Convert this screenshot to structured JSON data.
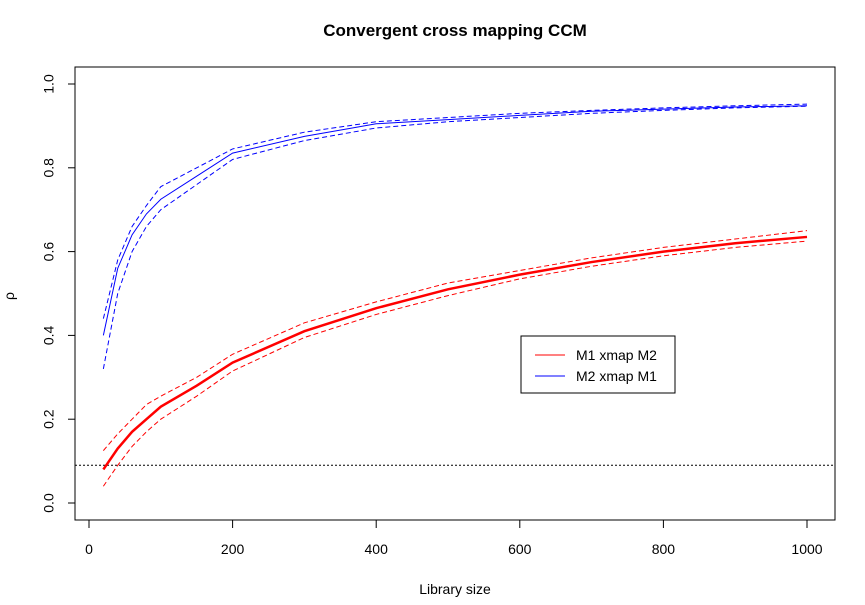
{
  "chart_data": {
    "type": "line",
    "title": "Convergent cross mapping CCM",
    "xlabel": "Library size",
    "ylabel": "ρ",
    "xlim": [
      0,
      1000
    ],
    "ylim": [
      0.0,
      1.0
    ],
    "x_ticks": [
      "0",
      "200",
      "400",
      "600",
      "800",
      "1000"
    ],
    "y_ticks": [
      "0.0",
      "0.2",
      "0.4",
      "0.6",
      "0.8",
      "1.0"
    ],
    "grid": false,
    "legend_position": "center-right",
    "x": [
      20,
      40,
      60,
      80,
      100,
      150,
      200,
      300,
      400,
      500,
      600,
      700,
      800,
      900,
      1000
    ],
    "series": [
      {
        "name": "M1 xmap M2",
        "color": "#ff0000",
        "values": [
          0.08,
          0.13,
          0.17,
          0.2,
          0.23,
          0.28,
          0.335,
          0.41,
          0.465,
          0.51,
          0.545,
          0.575,
          0.6,
          0.62,
          0.635
        ],
        "upper": [
          0.125,
          0.165,
          0.2,
          0.235,
          0.255,
          0.3,
          0.355,
          0.43,
          0.48,
          0.525,
          0.555,
          0.585,
          0.61,
          0.63,
          0.65
        ],
        "lower": [
          0.04,
          0.09,
          0.135,
          0.17,
          0.2,
          0.255,
          0.315,
          0.395,
          0.45,
          0.495,
          0.535,
          0.565,
          0.59,
          0.61,
          0.625
        ]
      },
      {
        "name": "M2 xmap M1",
        "color": "#0000ff",
        "values": [
          0.4,
          0.56,
          0.64,
          0.69,
          0.725,
          0.78,
          0.835,
          0.875,
          0.905,
          0.915,
          0.925,
          0.935,
          0.94,
          0.945,
          0.948
        ],
        "upper": [
          0.44,
          0.58,
          0.66,
          0.71,
          0.755,
          0.8,
          0.845,
          0.885,
          0.91,
          0.92,
          0.93,
          0.937,
          0.943,
          0.948,
          0.952
        ],
        "lower": [
          0.32,
          0.5,
          0.6,
          0.66,
          0.7,
          0.76,
          0.82,
          0.865,
          0.895,
          0.91,
          0.92,
          0.93,
          0.937,
          0.943,
          0.947
        ]
      }
    ],
    "reference_line": {
      "y": 0.09,
      "style": "dotted",
      "color": "#000000"
    }
  }
}
